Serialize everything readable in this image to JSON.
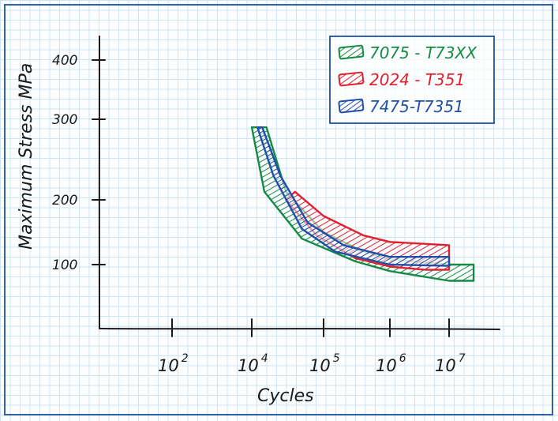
{
  "chart_data": {
    "type": "area",
    "title": "",
    "xlabel": "Cycles",
    "ylabel": "Maximum Stress MPa",
    "x_scale": "log",
    "x_ticks": [
      {
        "value": 100,
        "base": "10",
        "exp": "2"
      },
      {
        "value": 10000,
        "base": "10",
        "exp": "4"
      },
      {
        "value": 100000,
        "base": "10",
        "exp": "5"
      },
      {
        "value": 1000000,
        "base": "10",
        "exp": "6"
      },
      {
        "value": 10000000,
        "base": "10",
        "exp": "7"
      }
    ],
    "y_ticks": [
      {
        "value": 100,
        "label": "100"
      },
      {
        "value": 200,
        "label": "200"
      },
      {
        "value": 300,
        "label": "300"
      },
      {
        "value": 400,
        "label": "400"
      }
    ],
    "legend_position": "top-right",
    "grid": true,
    "series": [
      {
        "name": "7075 - T73XX",
        "color": "#168a43",
        "hatch": "green-hatch",
        "upper": [
          [
            16000,
            290
          ],
          [
            30000,
            210
          ],
          [
            100000,
            150
          ],
          [
            400000,
            120
          ],
          [
            1000000,
            108
          ],
          [
            10000000,
            100
          ],
          [
            20000000,
            100
          ]
        ],
        "lower": [
          [
            10000,
            290
          ],
          [
            15000,
            210
          ],
          [
            50000,
            140
          ],
          [
            300000,
            105
          ],
          [
            1000000,
            90
          ],
          [
            10000000,
            75
          ],
          [
            20000000,
            75
          ]
        ]
      },
      {
        "name": "2024 - T351",
        "color": "#e0202e",
        "hatch": "red-hatch",
        "upper": [
          [
            40000,
            210
          ],
          [
            100000,
            175
          ],
          [
            400000,
            145
          ],
          [
            1000000,
            135
          ],
          [
            10000000,
            130
          ]
        ],
        "lower": [
          [
            30000,
            200
          ],
          [
            80000,
            145
          ],
          [
            300000,
            110
          ],
          [
            1000000,
            97
          ],
          [
            4000000,
            92
          ],
          [
            10000000,
            92
          ]
        ]
      },
      {
        "name": "7475-T7351",
        "color": "#1f4fa8",
        "hatch": "blue-hatch",
        "upper": [
          [
            14000,
            290
          ],
          [
            25000,
            230
          ],
          [
            60000,
            165
          ],
          [
            200000,
            130
          ],
          [
            1000000,
            112
          ],
          [
            10000000,
            112
          ]
        ],
        "lower": [
          [
            12000,
            290
          ],
          [
            20000,
            230
          ],
          [
            50000,
            155
          ],
          [
            150000,
            120
          ],
          [
            1000000,
            100
          ],
          [
            10000000,
            98
          ]
        ]
      }
    ]
  }
}
